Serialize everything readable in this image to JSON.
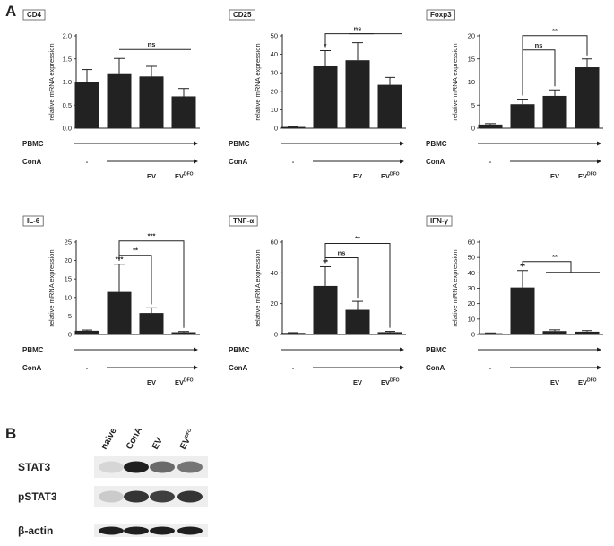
{
  "panel_a_label": "A",
  "panel_b_label": "B",
  "row_labels": {
    "pbmc": "PBMC",
    "cona": "ConA"
  },
  "group_labels": {
    "dash": "-",
    "ev": "EV",
    "evdfo_base": "EV",
    "evdfo_sup": "DFO"
  },
  "ylabel": "relative mRNA expression",
  "chart_data": [
    {
      "type": "bar",
      "title": "CD4",
      "categories": [
        "-",
        "ConA",
        "EV",
        "EVDFO"
      ],
      "values": [
        1.0,
        1.19,
        1.12,
        0.69
      ],
      "errors": [
        0.27,
        0.32,
        0.22,
        0.17
      ],
      "ylim": [
        0,
        2.0
      ],
      "yticks": [
        "0.0",
        "0.5",
        "1.0",
        "1.5",
        "2.0"
      ],
      "marks": [],
      "brackets": [
        {
          "kind": "line",
          "from": 1,
          "to": 3,
          "label": "ns"
        }
      ]
    },
    {
      "type": "bar",
      "title": "CD25",
      "categories": [
        "-",
        "ConA",
        "EV",
        "EVDFO"
      ],
      "values": [
        0.7,
        33.5,
        36.8,
        23.5
      ],
      "errors": [
        0.2,
        8.5,
        9.5,
        4.0
      ],
      "ylim": [
        0,
        50
      ],
      "yticks": [
        "0",
        "10",
        "20",
        "30",
        "40",
        "50"
      ],
      "marks": [
        {
          "bar": 1,
          "label": "*"
        }
      ],
      "brackets": [
        {
          "kind": "group",
          "from": 1,
          "to": 3,
          "label": "ns"
        }
      ]
    },
    {
      "type": "bar",
      "title": "Foxp3",
      "categories": [
        "-",
        "ConA",
        "EV",
        "EVDFO"
      ],
      "values": [
        0.8,
        5.2,
        7.0,
        13.2
      ],
      "errors": [
        0.2,
        1.1,
        1.3,
        1.8
      ],
      "ylim": [
        0,
        20
      ],
      "yticks": [
        "0",
        "5",
        "10",
        "15",
        "20"
      ],
      "marks": [],
      "brackets": [
        {
          "kind": "bracket",
          "from": 1,
          "to": 2,
          "label": "ns"
        },
        {
          "kind": "bracket",
          "from": 1,
          "to": 3,
          "label": "**"
        }
      ]
    },
    {
      "type": "bar",
      "title": "IL-6",
      "categories": [
        "-",
        "ConA",
        "EV",
        "EVDFO"
      ],
      "values": [
        1.0,
        11.5,
        5.8,
        0.6
      ],
      "errors": [
        0.2,
        7.5,
        1.4,
        0.2
      ],
      "ylim": [
        0,
        25
      ],
      "yticks": [
        "0",
        "5",
        "10",
        "15",
        "20",
        "25"
      ],
      "marks": [
        {
          "bar": 1,
          "label": "***"
        }
      ],
      "brackets": [
        {
          "kind": "bracket",
          "from": 1,
          "to": 2,
          "label": "**"
        },
        {
          "kind": "bracket",
          "from": 1,
          "to": 3,
          "label": "***"
        }
      ]
    },
    {
      "type": "bar",
      "title": "TNF-α",
      "categories": [
        "-",
        "ConA",
        "EV",
        "EVDFO"
      ],
      "values": [
        1.0,
        31.5,
        16.0,
        1.5
      ],
      "errors": [
        0.2,
        12.5,
        5.5,
        0.5
      ],
      "ylim": [
        0,
        60
      ],
      "yticks": [
        "0",
        "20",
        "40",
        "60"
      ],
      "marks": [
        {
          "bar": 1,
          "label": "**"
        }
      ],
      "brackets": [
        {
          "kind": "bracket",
          "from": 1,
          "to": 2,
          "label": "ns"
        },
        {
          "kind": "bracket",
          "from": 1,
          "to": 3,
          "label": "**"
        }
      ]
    },
    {
      "type": "bar",
      "title": "IFN-γ",
      "categories": [
        "-",
        "ConA",
        "EV",
        "EVDFO"
      ],
      "values": [
        0.8,
        30.5,
        2.2,
        1.8
      ],
      "errors": [
        0.2,
        11.0,
        0.8,
        0.7
      ],
      "ylim": [
        0,
        60
      ],
      "yticks": [
        "0",
        "10",
        "20",
        "30",
        "40",
        "50",
        "60"
      ],
      "marks": [
        {
          "bar": 1,
          "label": "**"
        }
      ],
      "brackets": [
        {
          "kind": "group",
          "from": 1,
          "to": 3,
          "label": "**"
        }
      ]
    }
  ],
  "western_blot": {
    "lanes": [
      "naive",
      "ConA",
      "EV",
      "EV"
    ],
    "lane_sup": [
      "",
      "",
      "",
      "DFO"
    ],
    "rows": [
      {
        "label": "STAT3",
        "intensities": [
          0.1,
          0.95,
          0.6,
          0.55
        ]
      },
      {
        "label": "pSTAT3",
        "intensities": [
          0.15,
          0.85,
          0.8,
          0.85
        ]
      },
      {
        "label": "β-actin",
        "intensities": [
          0.95,
          0.95,
          0.95,
          0.95
        ]
      }
    ]
  }
}
